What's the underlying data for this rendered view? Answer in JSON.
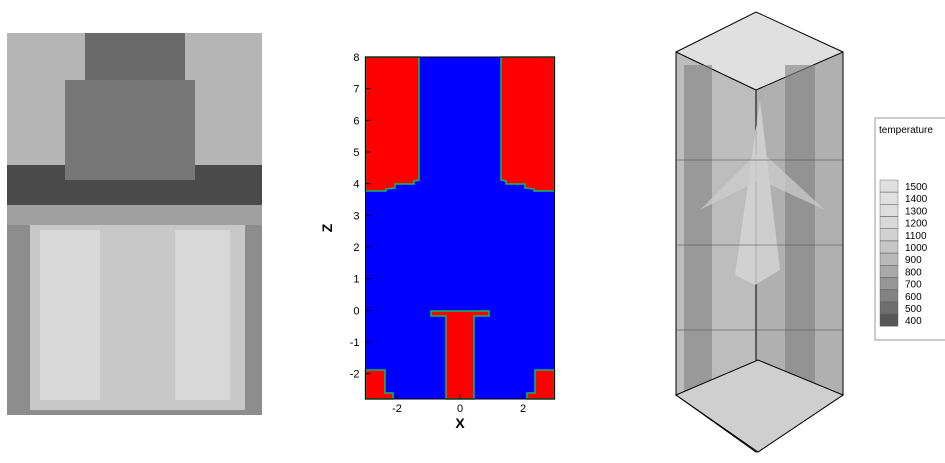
{
  "domain_plot": {
    "x_label": "X",
    "y_label": "Z",
    "xlim": [
      -3,
      3
    ],
    "ylim": [
      -2.8,
      8
    ],
    "xticks": [
      -2,
      0,
      2
    ],
    "yticks": [
      -2,
      -1,
      0,
      1,
      2,
      3,
      4,
      5,
      6,
      7,
      8
    ]
  },
  "legend": {
    "title": "temperature",
    "levels": [
      1500,
      1400,
      1300,
      1200,
      1100,
      1000,
      900,
      800,
      700,
      600,
      500,
      400
    ]
  }
}
